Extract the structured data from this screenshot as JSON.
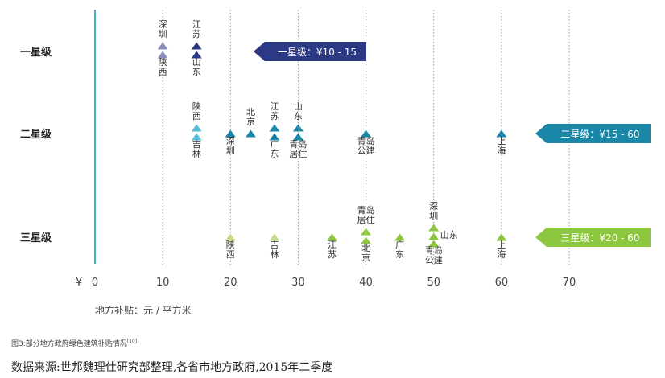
{
  "chart_data": {
    "type": "scatter",
    "currency_symbol": "¥",
    "xlim": [
      0,
      70
    ],
    "x_ticks": [
      0,
      10,
      20,
      30,
      40,
      50,
      60,
      70
    ],
    "x_label": "地方补贴：元 / 平方米",
    "rows": [
      {
        "name": "一星级",
        "range_label": "一星级：¥10 - 15",
        "range": [
          10,
          15
        ],
        "color": "#2c3a85",
        "points": [
          {
            "x": 10,
            "above": "深圳",
            "below": "陕西",
            "color": "#8a8fc0",
            "double": true
          },
          {
            "x": 15,
            "above": "江苏",
            "below": "山东",
            "color": "#2c3a85",
            "double": true
          }
        ]
      },
      {
        "name": "二星级",
        "range_label": "二星级：¥15 - 60",
        "range": [
          15,
          60
        ],
        "color": "#1b87a8",
        "points": [
          {
            "x": 15,
            "above": "陕西",
            "below": "吉林",
            "color": "#56bcd9",
            "double": true
          },
          {
            "x": 20,
            "above": "",
            "below": "深圳",
            "color": "#1b87a8"
          },
          {
            "x": 23,
            "above": "北京",
            "below": "",
            "color": "#1b87a8"
          },
          {
            "x": 26.5,
            "above": "江苏",
            "below": "广东",
            "color": "#1b87a8",
            "double": true
          },
          {
            "x": 30,
            "above": "山东",
            "below": "青岛\n居住",
            "color": "#1b87a8",
            "double": true
          },
          {
            "x": 40,
            "above": "",
            "below": "青岛\n公建",
            "color": "#1b87a8"
          },
          {
            "x": 60,
            "above": "",
            "below": "上海",
            "color": "#1b87a8"
          }
        ]
      },
      {
        "name": "三星级",
        "range_label": "三星级：¥20 - 60",
        "range": [
          20,
          60
        ],
        "color": "#8dc63f",
        "points": [
          {
            "x": 20,
            "above": "",
            "below": "陕西",
            "color": "#c5dc8f"
          },
          {
            "x": 26.5,
            "above": "",
            "below": "吉林",
            "color": "#c5dc8f"
          },
          {
            "x": 35,
            "above": "",
            "below": "江苏",
            "color": "#8dc63f"
          },
          {
            "x": 40,
            "above": "青岛\n居住",
            "below": "北京",
            "color": "#8dc63f",
            "double": true
          },
          {
            "x": 45,
            "above": "",
            "below": "广东",
            "color": "#8dc63f"
          },
          {
            "x": 50,
            "above": "深圳",
            "below": "青岛\n公建",
            "color": "#8dc63f",
            "triple": true,
            "side": "山东"
          },
          {
            "x": 60,
            "above": "",
            "below": "上海",
            "color": "#8dc63f"
          }
        ]
      }
    ]
  },
  "caption": {
    "text": "图3:部分地方政府绿色建筑补贴情况",
    "ref": "[10]"
  },
  "source": "数据来源:世邦魏理仕研究部整理,各省市地方政府,2015年二季度"
}
